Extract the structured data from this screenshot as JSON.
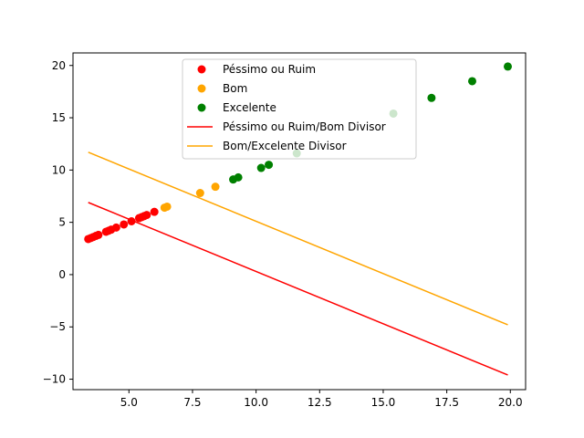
{
  "chart_data": {
    "type": "scatter",
    "title": "",
    "xlabel": "",
    "ylabel": "",
    "xlim": [
      2.8,
      20.6
    ],
    "ylim": [
      -11.0,
      21.2
    ],
    "xticks": [
      5.0,
      7.5,
      10.0,
      12.5,
      15.0,
      17.5,
      20.0
    ],
    "xtick_labels": [
      "5.0",
      "7.5",
      "10.0",
      "12.5",
      "15.0",
      "17.5",
      "20.0"
    ],
    "yticks": [
      -10,
      -5,
      0,
      5,
      10,
      15,
      20
    ],
    "ytick_labels": [
      "−10",
      "−5",
      "0",
      "5",
      "10",
      "15",
      "20"
    ],
    "grid": false,
    "legend_position": "top-center",
    "series": [
      {
        "name": "Péssimo ou Ruim",
        "kind": "scatter",
        "color": "#ff0000",
        "points": [
          [
            3.4,
            3.4
          ],
          [
            3.5,
            3.5
          ],
          [
            3.6,
            3.6
          ],
          [
            3.7,
            3.7
          ],
          [
            3.8,
            3.8
          ],
          [
            4.1,
            4.1
          ],
          [
            4.2,
            4.2
          ],
          [
            4.3,
            4.3
          ],
          [
            4.5,
            4.5
          ],
          [
            4.8,
            4.8
          ],
          [
            5.1,
            5.1
          ],
          [
            5.4,
            5.4
          ],
          [
            5.5,
            5.5
          ],
          [
            5.6,
            5.6
          ],
          [
            5.7,
            5.7
          ],
          [
            6.0,
            6.0
          ]
        ]
      },
      {
        "name": "Bom",
        "kind": "scatter",
        "color": "#ffa500",
        "points": [
          [
            6.4,
            6.4
          ],
          [
            6.5,
            6.5
          ],
          [
            7.8,
            7.8
          ],
          [
            8.4,
            8.4
          ]
        ]
      },
      {
        "name": "Excelente",
        "kind": "scatter",
        "color": "#008000",
        "points": [
          [
            9.1,
            9.1
          ],
          [
            9.3,
            9.3
          ],
          [
            10.2,
            10.2
          ],
          [
            10.5,
            10.5
          ],
          [
            11.6,
            11.6
          ],
          [
            15.4,
            15.4
          ],
          [
            16.9,
            16.9
          ],
          [
            18.5,
            18.5
          ],
          [
            19.9,
            19.9
          ]
        ]
      },
      {
        "name": "Péssimo ou Ruim/Bom Divisor",
        "kind": "line",
        "color": "#ff0000",
        "points": [
          [
            3.4,
            6.9
          ],
          [
            19.9,
            -9.6
          ]
        ]
      },
      {
        "name": "Bom/Excelente Divisor",
        "kind": "line",
        "color": "#ffa500",
        "points": [
          [
            3.4,
            11.7
          ],
          [
            19.9,
            -4.8
          ]
        ]
      }
    ]
  }
}
